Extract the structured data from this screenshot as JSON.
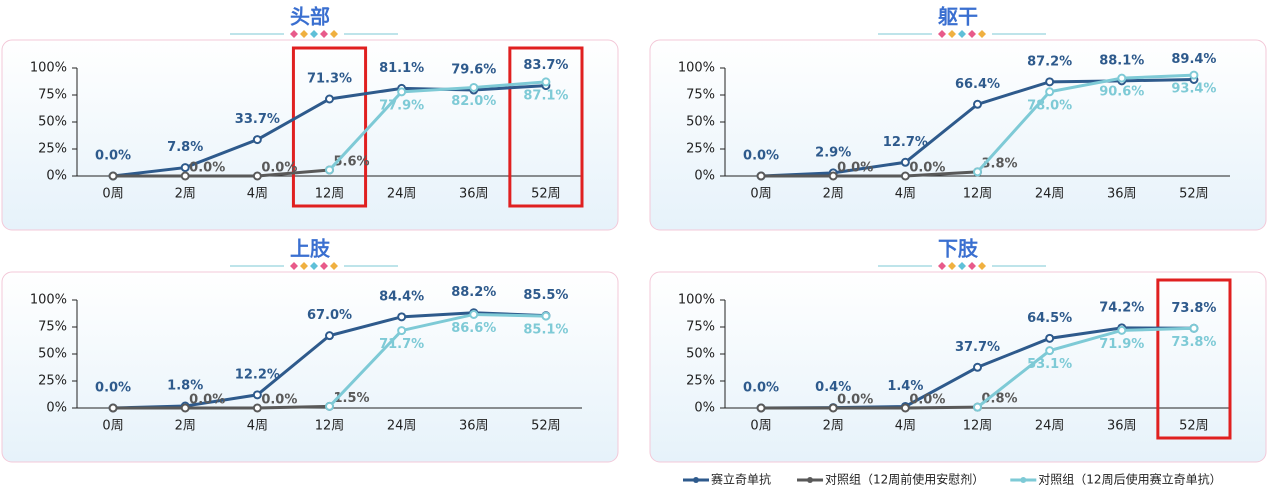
{
  "chart_data": [
    {
      "type": "line",
      "title": "头部",
      "categories": [
        "0周",
        "2周",
        "4周",
        "12周",
        "24周",
        "36周",
        "52周"
      ],
      "ylim": [
        0,
        100
      ],
      "yticks": [
        {
          "value": 0,
          "label": "0%"
        },
        {
          "value": 25,
          "label": "25%"
        },
        {
          "value": 50,
          "label": "50%"
        },
        {
          "value": 75,
          "label": "75%"
        },
        {
          "value": 100,
          "label": "100%"
        }
      ],
      "highlight": [
        3,
        6
      ],
      "series": [
        {
          "values": [
            0,
            7.8,
            33.7,
            71.3,
            81.1,
            79.6,
            83.7
          ],
          "value_labels": [
            "0.0%",
            "7.8%",
            "33.7%",
            "71.3%",
            "81.1%",
            "79.6%",
            "83.7%"
          ]
        },
        {
          "values": [
            0,
            0,
            0,
            5.6,
            null,
            null,
            null
          ],
          "value_labels": [
            null,
            "0.0%",
            "0.0%",
            "5.6%",
            null,
            null,
            null
          ]
        },
        {
          "values": [
            null,
            null,
            null,
            5.6,
            77.9,
            82.0,
            87.1
          ],
          "value_labels": [
            null,
            null,
            null,
            null,
            "77.9%",
            "82.0%",
            "87.1%"
          ]
        }
      ]
    },
    {
      "type": "line",
      "title": "躯干",
      "categories": [
        "0周",
        "2周",
        "4周",
        "12周",
        "24周",
        "36周",
        "52周"
      ],
      "ylim": [
        0,
        100
      ],
      "yticks": [
        {
          "value": 0,
          "label": "0%"
        },
        {
          "value": 25,
          "label": "25%"
        },
        {
          "value": 50,
          "label": "50%"
        },
        {
          "value": 75,
          "label": "75%"
        },
        {
          "value": 100,
          "label": "100%"
        }
      ],
      "highlight": [],
      "series": [
        {
          "values": [
            0,
            2.9,
            12.7,
            66.4,
            87.2,
            88.1,
            89.4
          ],
          "value_labels": [
            "0.0%",
            "2.9%",
            "12.7%",
            "66.4%",
            "87.2%",
            "88.1%",
            "89.4%"
          ]
        },
        {
          "values": [
            0,
            0,
            0,
            3.8,
            null,
            null,
            null
          ],
          "value_labels": [
            null,
            "0.0%",
            "0.0%",
            "3.8%",
            null,
            null,
            null
          ]
        },
        {
          "values": [
            null,
            null,
            null,
            3.8,
            78.0,
            90.6,
            93.4
          ],
          "value_labels": [
            null,
            null,
            null,
            null,
            "78.0%",
            "90.6%",
            "93.4%"
          ]
        }
      ]
    },
    {
      "type": "line",
      "title": "上肢",
      "categories": [
        "0周",
        "2周",
        "4周",
        "12周",
        "24周",
        "36周",
        "52周"
      ],
      "ylim": [
        0,
        100
      ],
      "yticks": [
        {
          "value": 0,
          "label": "0%"
        },
        {
          "value": 25,
          "label": "25%"
        },
        {
          "value": 50,
          "label": "50%"
        },
        {
          "value": 75,
          "label": "75%"
        },
        {
          "value": 100,
          "label": "100%"
        }
      ],
      "highlight": [],
      "series": [
        {
          "values": [
            0,
            1.8,
            12.2,
            67.0,
            84.4,
            88.2,
            85.5
          ],
          "value_labels": [
            "0.0%",
            "1.8%",
            "12.2%",
            "67.0%",
            "84.4%",
            "88.2%",
            "85.5%"
          ]
        },
        {
          "values": [
            0,
            0,
            0,
            1.5,
            null,
            null,
            null
          ],
          "value_labels": [
            null,
            "0.0%",
            "0.0%",
            "1.5%",
            null,
            null,
            null
          ]
        },
        {
          "values": [
            null,
            null,
            null,
            1.5,
            71.7,
            86.6,
            85.1
          ],
          "value_labels": [
            null,
            null,
            null,
            null,
            "71.7%",
            "86.6%",
            "85.1%"
          ]
        }
      ]
    },
    {
      "type": "line",
      "title": "下肢",
      "categories": [
        "0周",
        "2周",
        "4周",
        "12周",
        "24周",
        "36周",
        "52周"
      ],
      "ylim": [
        0,
        100
      ],
      "yticks": [
        {
          "value": 0,
          "label": "0%"
        },
        {
          "value": 25,
          "label": "25%"
        },
        {
          "value": 50,
          "label": "50%"
        },
        {
          "value": 75,
          "label": "75%"
        },
        {
          "value": 100,
          "label": "100%"
        }
      ],
      "highlight": [
        6
      ],
      "series": [
        {
          "values": [
            0,
            0.4,
            1.4,
            37.7,
            64.5,
            74.2,
            73.8
          ],
          "value_labels": [
            "0.0%",
            "0.4%",
            "1.4%",
            "37.7%",
            "64.5%",
            "74.2%",
            "73.8%"
          ]
        },
        {
          "values": [
            0,
            0,
            0,
            0.8,
            null,
            null,
            null
          ],
          "value_labels": [
            null,
            "0.0%",
            "0.0%",
            "0.8%",
            null,
            null,
            null
          ]
        },
        {
          "values": [
            null,
            null,
            null,
            0.8,
            53.1,
            71.9,
            73.8
          ],
          "value_labels": [
            null,
            null,
            null,
            null,
            "53.1%",
            "71.9%",
            "73.8%"
          ]
        }
      ]
    }
  ],
  "legend": [
    {
      "name": "赛立奇单抗",
      "color": "#2e5a8c"
    },
    {
      "name": "对照组（12周前使用安慰剂）",
      "color": "#595959"
    },
    {
      "name": "对照组（12周后使用赛立奇单抗）",
      "color": "#7ecad6"
    }
  ]
}
